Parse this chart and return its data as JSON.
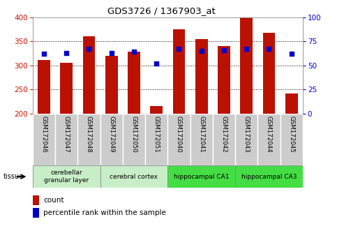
{
  "title": "GDS3726 / 1367903_at",
  "samples": [
    "GSM172046",
    "GSM172047",
    "GSM172048",
    "GSM172049",
    "GSM172050",
    "GSM172051",
    "GSM172040",
    "GSM172041",
    "GSM172042",
    "GSM172043",
    "GSM172044",
    "GSM172045"
  ],
  "counts": [
    312,
    306,
    360,
    320,
    328,
    215,
    375,
    355,
    340,
    400,
    368,
    242
  ],
  "percentiles": [
    62,
    63,
    67,
    63,
    64,
    52,
    67,
    65,
    66,
    67,
    67,
    62
  ],
  "ymin": 200,
  "ymax": 400,
  "yticks": [
    200,
    250,
    300,
    350,
    400
  ],
  "right_yticks": [
    0,
    25,
    50,
    75,
    100
  ],
  "bar_color": "#bb1100",
  "dot_color": "#0000cc",
  "tissue_groups": [
    {
      "label": "cerebellar\ngranular layer",
      "start": 0,
      "end": 3,
      "color": "#c8eec8"
    },
    {
      "label": "cerebral cortex",
      "start": 3,
      "end": 6,
      "color": "#c8eec8"
    },
    {
      "label": "hippocampal CA1",
      "start": 6,
      "end": 9,
      "color": "#44dd44"
    },
    {
      "label": "hippocampal CA3",
      "start": 9,
      "end": 12,
      "color": "#44dd44"
    }
  ],
  "legend_count_label": "count",
  "legend_pct_label": "percentile rank within the sample",
  "tissue_label": "tissue",
  "bar_width": 0.55,
  "figure_bg": "#ffffff",
  "axes_bg": "#ffffff",
  "label_area_color": "#cccccc",
  "right_yaxis_color": "#0000cc",
  "left_yaxis_color": "#cc1100",
  "grid_color": "#000000",
  "border_color": "#888888"
}
